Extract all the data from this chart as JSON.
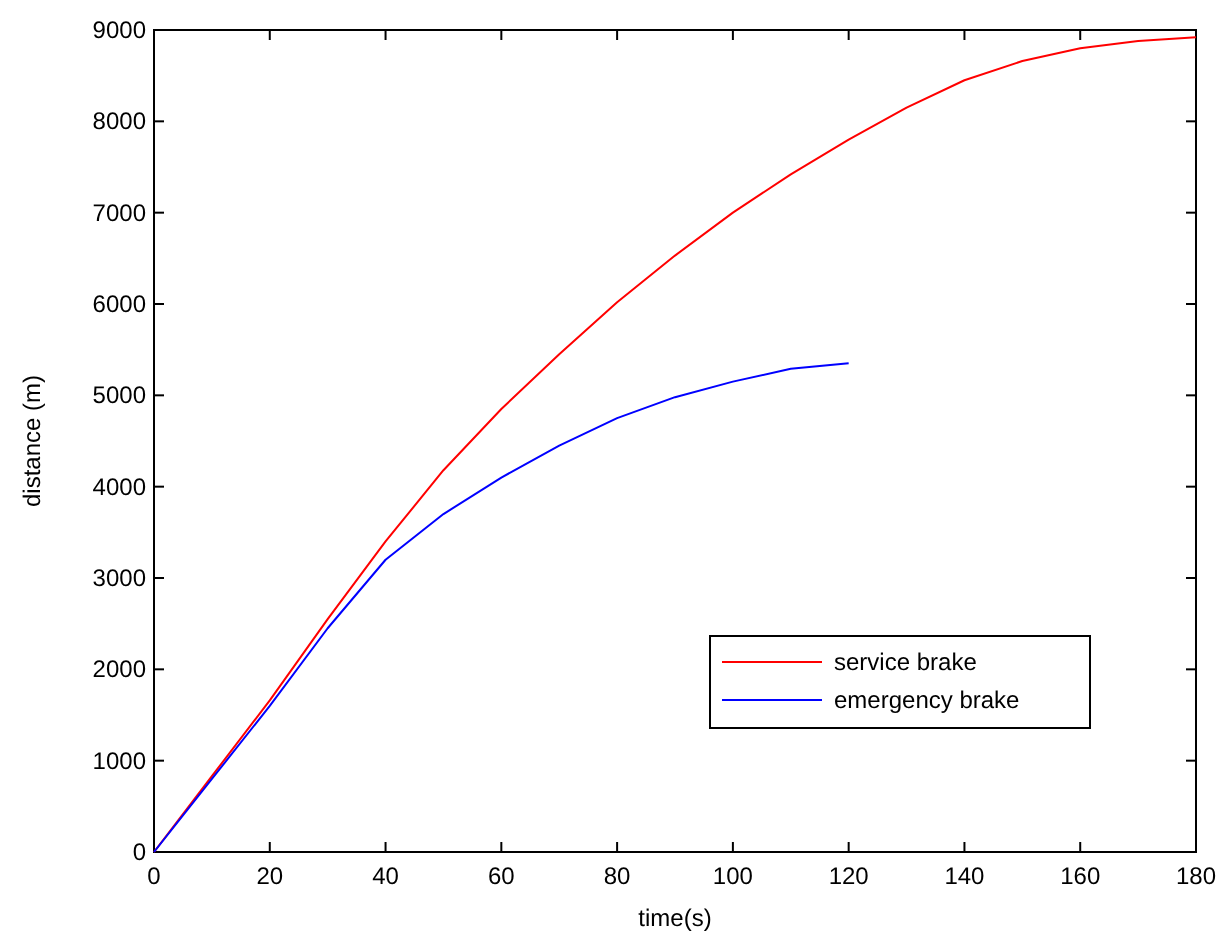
{
  "chart_data": {
    "type": "line",
    "xlabel": "time(s)",
    "ylabel": "distance (m)",
    "xlim": [
      0,
      180
    ],
    "ylim": [
      0,
      9000
    ],
    "xticks": [
      0,
      20,
      40,
      60,
      80,
      100,
      120,
      140,
      160,
      180
    ],
    "yticks": [
      0,
      1000,
      2000,
      3000,
      4000,
      5000,
      6000,
      7000,
      8000,
      9000
    ],
    "grid": false,
    "legend": "bottom right",
    "marker": "none",
    "line_style": "solid",
    "series": [
      {
        "name": "service brake",
        "color": "#ff0000",
        "x": [
          0,
          10,
          20,
          30,
          40,
          50,
          60,
          70,
          80,
          90,
          100,
          110,
          120,
          130,
          140,
          150,
          160,
          170,
          180
        ],
        "values": [
          0,
          830,
          1660,
          2550,
          3400,
          4180,
          4850,
          5450,
          6020,
          6530,
          7000,
          7420,
          7800,
          8150,
          8450,
          8660,
          8800,
          8880,
          8920
        ]
      },
      {
        "name": "emergency brake",
        "color": "#0000ff",
        "x": [
          0,
          10,
          20,
          30,
          40,
          50,
          60,
          70,
          80,
          90,
          100,
          110,
          120
        ],
        "values": [
          0,
          800,
          1600,
          2450,
          3200,
          3700,
          4100,
          4450,
          4750,
          4980,
          5150,
          5290,
          5350
        ]
      }
    ]
  }
}
